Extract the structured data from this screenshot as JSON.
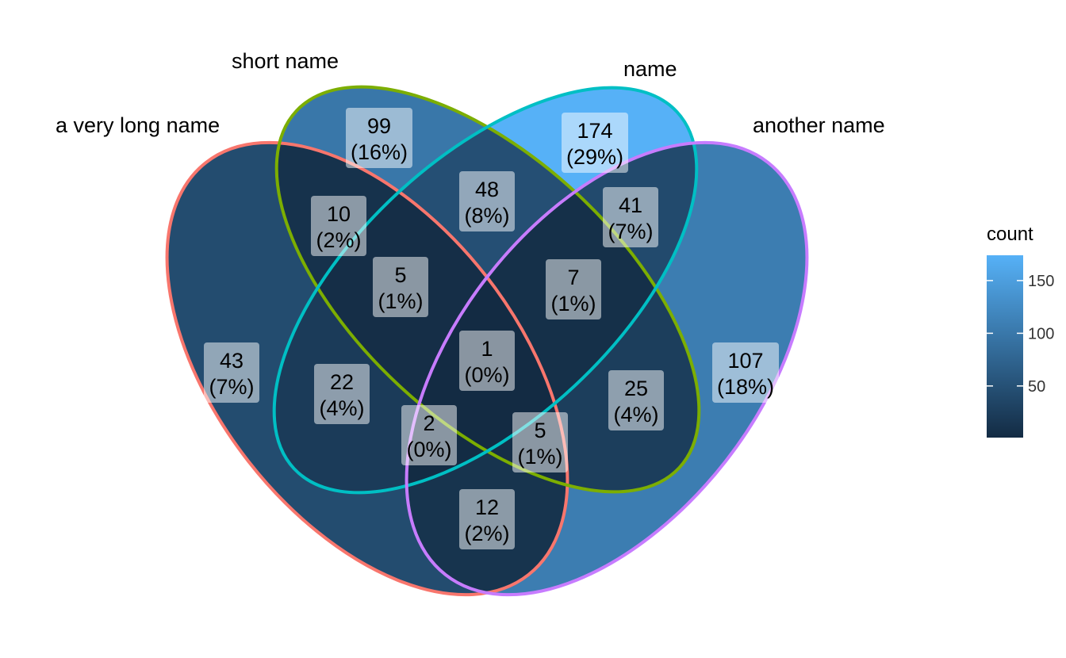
{
  "chart_data": {
    "type": "venn",
    "sets": [
      {
        "name": "a very long name",
        "color": "#F8766D"
      },
      {
        "name": "short name",
        "color": "#7CAE00"
      },
      {
        "name": "name",
        "color": "#00BFC4"
      },
      {
        "name": "another name",
        "color": "#C77CFF"
      }
    ],
    "regions": [
      {
        "sets": [
          "a very long name"
        ],
        "count": 43,
        "percent": "(7%)"
      },
      {
        "sets": [
          "short name"
        ],
        "count": 99,
        "percent": "(16%)"
      },
      {
        "sets": [
          "name"
        ],
        "count": 174,
        "percent": "(29%)"
      },
      {
        "sets": [
          "another name"
        ],
        "count": 107,
        "percent": "(18%)"
      },
      {
        "sets": [
          "a very long name",
          "short name"
        ],
        "count": 10,
        "percent": "(2%)"
      },
      {
        "sets": [
          "short name",
          "name"
        ],
        "count": 48,
        "percent": "(8%)"
      },
      {
        "sets": [
          "name",
          "another name"
        ],
        "count": 41,
        "percent": "(7%)"
      },
      {
        "sets": [
          "a very long name",
          "name"
        ],
        "count": 22,
        "percent": "(4%)"
      },
      {
        "sets": [
          "short name",
          "another name"
        ],
        "count": 25,
        "percent": "(4%)"
      },
      {
        "sets": [
          "a very long name",
          "another name"
        ],
        "count": 12,
        "percent": "(2%)"
      },
      {
        "sets": [
          "a very long name",
          "short name",
          "name"
        ],
        "count": 5,
        "percent": "(1%)"
      },
      {
        "sets": [
          "short name",
          "name",
          "another name"
        ],
        "count": 7,
        "percent": "(1%)"
      },
      {
        "sets": [
          "a very long name",
          "name",
          "another name"
        ],
        "count": 2,
        "percent": "(0%)"
      },
      {
        "sets": [
          "a very long name",
          "short name",
          "another name"
        ],
        "count": 5,
        "percent": "(1%)"
      },
      {
        "sets": [
          "a very long name",
          "short name",
          "name",
          "another name"
        ],
        "count": 1,
        "percent": "(0%)"
      }
    ],
    "fill_scale": {
      "title": "count",
      "low_color": "#132B43",
      "high_color": "#56B1F7",
      "range": [
        1,
        174
      ],
      "breaks": [
        50,
        100,
        150
      ],
      "break_labels": [
        "50",
        "100",
        "150"
      ]
    }
  }
}
